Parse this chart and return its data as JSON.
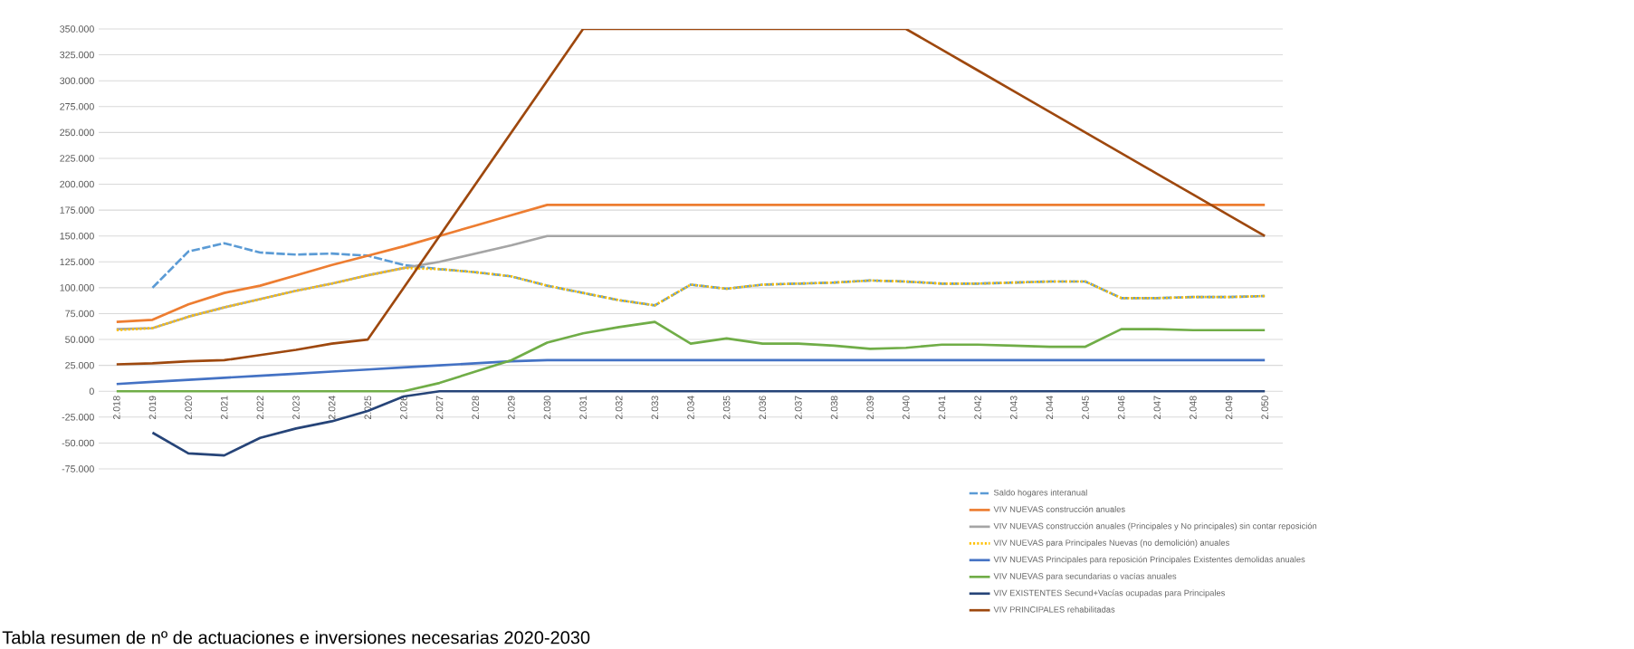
{
  "chart_data": [
    {
      "type": "line",
      "categories": [
        "2.018",
        "2.019",
        "2.020",
        "2.021",
        "2.022",
        "2.023",
        "2.024",
        "2.025",
        "2.026",
        "2.027",
        "2.028",
        "2.029",
        "2.030",
        "2.031",
        "2.032",
        "2.033",
        "2.034",
        "2.035",
        "2.036",
        "2.037",
        "2.038",
        "2.039",
        "2.040",
        "2.041",
        "2.042",
        "2.043",
        "2.044",
        "2.045",
        "2.046",
        "2.047",
        "2.048",
        "2.049",
        "2.050"
      ],
      "ylim": [
        -75000,
        350000
      ],
      "yticks": [
        {
          "value": -75000,
          "label": "-75.000"
        },
        {
          "value": -50000,
          "label": "-50.000"
        },
        {
          "value": -25000,
          "label": "-25.000"
        },
        0,
        {
          "value": 25000,
          "label": "25.000"
        },
        {
          "value": 50000,
          "label": "50.000"
        },
        {
          "value": 75000,
          "label": "75.000"
        },
        {
          "value": 100000,
          "label": "100.000"
        },
        {
          "value": 125000,
          "label": "125.000"
        },
        {
          "value": 150000,
          "label": "150.000"
        },
        {
          "value": 175000,
          "label": "175.000"
        },
        {
          "value": 200000,
          "label": "200.000"
        },
        {
          "value": 225000,
          "label": "225.000"
        },
        {
          "value": 250000,
          "label": "250.000"
        },
        {
          "value": 275000,
          "label": "275.000"
        },
        {
          "value": 300000,
          "label": "300.000"
        },
        {
          "value": 325000,
          "label": "325.000"
        },
        {
          "value": 350000,
          "label": "350.000"
        }
      ],
      "grid": "y",
      "legend": "bottom right",
      "series": [
        {
          "name": "Saldo hogares interanual",
          "color": "#5b9bd5",
          "line_style": "dashed",
          "values": [
            null,
            100000,
            135000,
            143000,
            134000,
            132000,
            133000,
            131000,
            122000,
            118000,
            115000,
            111000,
            102000,
            95000,
            88000,
            83000,
            103000,
            99000,
            103000,
            104000,
            105000,
            107000,
            106000,
            104000,
            104000,
            105000,
            106000,
            106000,
            90000,
            90000,
            91000,
            91000,
            92000
          ]
        },
        {
          "name": "VIV NUEVAS construcción anuales",
          "color": "#ed7d31",
          "line_style": "solid",
          "values": [
            67000,
            69000,
            84000,
            95000,
            102000,
            112000,
            122000,
            131000,
            140000,
            150000,
            160000,
            170000,
            180000,
            180000,
            180000,
            180000,
            180000,
            180000,
            180000,
            180000,
            180000,
            180000,
            180000,
            180000,
            180000,
            180000,
            180000,
            180000,
            180000,
            180000,
            180000,
            180000,
            180000
          ]
        },
        {
          "name": "VIV NUEVAS construcción anuales (Principales y No principales) sin contar reposición",
          "color": "#a5a5a5",
          "line_style": "solid",
          "values": [
            60000,
            61000,
            72000,
            81000,
            89000,
            97000,
            104000,
            112000,
            119000,
            125000,
            133000,
            141000,
            150000,
            150000,
            150000,
            150000,
            150000,
            150000,
            150000,
            150000,
            150000,
            150000,
            150000,
            150000,
            150000,
            150000,
            150000,
            150000,
            150000,
            150000,
            150000,
            150000,
            150000
          ]
        },
        {
          "name": "VIV NUEVAS para Principales Nuevas (no demolición) anuales",
          "color": "#ffc000",
          "line_style": "dotted",
          "values": [
            59000,
            61000,
            72000,
            81000,
            89000,
            97000,
            104000,
            112000,
            119000,
            118000,
            115000,
            111000,
            102000,
            95000,
            88000,
            83000,
            103000,
            99000,
            103000,
            104000,
            105000,
            107000,
            106000,
            104000,
            104000,
            105000,
            106000,
            106000,
            90000,
            90000,
            91000,
            91000,
            92000
          ]
        },
        {
          "name": "VIV NUEVAS Principales para reposición Principales Existentes demolidas anuales",
          "color": "#4472c4",
          "line_style": "solid",
          "values": [
            7000,
            9000,
            11000,
            13000,
            15000,
            17000,
            19000,
            21000,
            23000,
            25000,
            27000,
            29000,
            30000,
            30000,
            30000,
            30000,
            30000,
            30000,
            30000,
            30000,
            30000,
            30000,
            30000,
            30000,
            30000,
            30000,
            30000,
            30000,
            30000,
            30000,
            30000,
            30000,
            30000
          ]
        },
        {
          "name": "VIV NUEVAS para secundarias o vacías anuales",
          "color": "#70ad47",
          "line_style": "solid",
          "values": [
            0,
            0,
            0,
            0,
            0,
            0,
            0,
            0,
            0,
            8000,
            19000,
            30000,
            47000,
            56000,
            62000,
            67000,
            46000,
            51000,
            46000,
            46000,
            44000,
            41000,
            42000,
            45000,
            45000,
            44000,
            43000,
            43000,
            60000,
            60000,
            59000,
            59000,
            59000
          ]
        },
        {
          "name": "VIV EXISTENTES Secund+Vacías ocupadas para Principales",
          "color": "#264478",
          "line_style": "solid",
          "values": [
            null,
            -40000,
            -60000,
            -62000,
            -45000,
            -36000,
            -29000,
            -19000,
            -5000,
            0,
            0,
            0,
            0,
            0,
            0,
            0,
            0,
            0,
            0,
            0,
            0,
            0,
            0,
            0,
            0,
            0,
            0,
            0,
            0,
            0,
            0,
            0,
            0
          ]
        },
        {
          "name": "VIV PRINCIPALES rehabilitadas",
          "color": "#9e480e",
          "line_style": "solid",
          "values": [
            26000,
            27000,
            29000,
            30000,
            35000,
            40000,
            46000,
            50000,
            100000,
            150000,
            200000,
            250000,
            300000,
            350000,
            350000,
            350000,
            350000,
            350000,
            350000,
            350000,
            350000,
            350000,
            350000,
            330000,
            310000,
            290000,
            270000,
            250000,
            230000,
            210000,
            190000,
            170000,
            150000
          ]
        }
      ],
      "annotations": [
        "Tabla resumen de nº de actuaciones e inversiones necesarias 2020-2030"
      ]
    }
  ]
}
